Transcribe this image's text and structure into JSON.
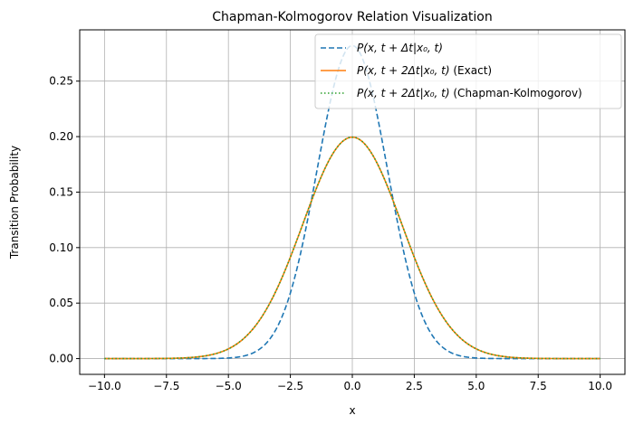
{
  "chart_data": {
    "type": "line",
    "title": "Chapman-Kolmogorov Relation Visualization",
    "xlabel": "x",
    "ylabel": "Transition Probability",
    "xlim": [
      -11,
      11
    ],
    "ylim": [
      -0.0142,
      0.2962
    ],
    "xticks": [
      -10.0,
      -7.5,
      -5.0,
      -2.5,
      0.0,
      2.5,
      5.0,
      7.5,
      10.0
    ],
    "xtick_labels": [
      "−10.0",
      "−7.5",
      "−5.0",
      "−2.5",
      "0.0",
      "2.5",
      "5.0",
      "7.5",
      "10.0"
    ],
    "yticks": [
      0.0,
      0.05,
      0.1,
      0.15,
      0.2,
      0.25
    ],
    "ytick_labels": [
      "0.00",
      "0.05",
      "0.10",
      "0.15",
      "0.20",
      "0.25"
    ],
    "grid": true,
    "legend_position": "top-right",
    "x_range": [
      -10,
      10
    ],
    "series": [
      {
        "name_parts": [
          "P(x, t + Δt|x₀, t)",
          ""
        ],
        "style": "dashed",
        "color": "#1f77b4",
        "distribution": "normal",
        "mean": 0,
        "variance": 2,
        "peak": 0.282
      },
      {
        "name_parts": [
          "P(x, t + 2Δt|x₀, t)",
          " (Exact)"
        ],
        "style": "solid",
        "color": "#ff7f0e",
        "distribution": "normal",
        "mean": 0,
        "variance": 4,
        "peak": 0.1995
      },
      {
        "name_parts": [
          "P(x, t + 2Δt|x₀, t)",
          " (Chapman-Kolmogorov)"
        ],
        "style": "dotted",
        "color": "#2ca02c",
        "distribution": "normal",
        "mean": 0,
        "variance": 4,
        "peak": 0.1995
      }
    ]
  }
}
